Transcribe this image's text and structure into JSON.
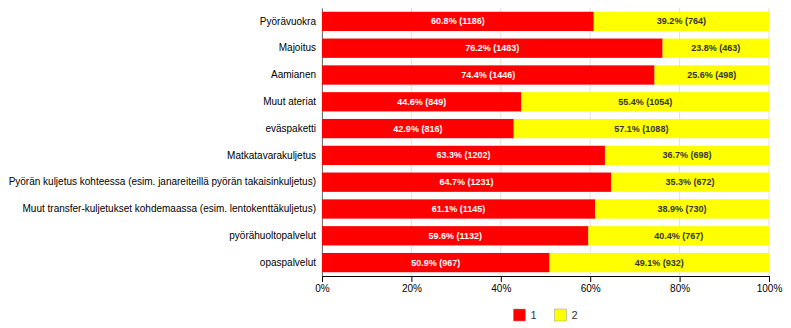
{
  "chart_data": {
    "type": "bar",
    "orientation": "horizontal",
    "stacked": true,
    "categories": [
      "opaspalvelut",
      "pyörähuoltopalvelut",
      "Muut transfer-kuljetukset kohdemaassa (esim. lentokenttäkuljetus)",
      "Pyörän kuljetus kohteessa (esim. janareiteillä pyörän takaisinkuljetus)",
      "Matkatavarakuljetus",
      "eväspaketti",
      "Muut ateriat",
      "Aamianen",
      "Majoitus",
      "Pyörävuokra"
    ],
    "series": [
      {
        "name": "1",
        "color": "#FF0000",
        "values": [
          50.9,
          59.6,
          61.1,
          64.7,
          63.3,
          42.9,
          44.6,
          74.4,
          76.2,
          60.8
        ],
        "value_labels": [
          "50.9% (967)",
          "59.6% (1132)",
          "61.1% (1145)",
          "64.7% (1231)",
          "63.3% (1202)",
          "42.9% (816)",
          "44.6% (849)",
          "74.4% (1446)",
          "76.2% (1483)",
          "60.8% (1186)"
        ]
      },
      {
        "name": "2",
        "color": "#FFFF00",
        "values": [
          49.1,
          40.4,
          38.9,
          35.3,
          36.7,
          57.1,
          55.4,
          25.6,
          23.8,
          39.2
        ],
        "value_labels": [
          "49.1% (932)",
          "40.4% (767)",
          "38.9% (730)",
          "35.3% (672)",
          "36.7% (698)",
          "57.1% (1088)",
          "55.4% (1054)",
          "25.6% (498)",
          "23.8% (463)",
          "39.2% (764)"
        ]
      }
    ],
    "data_labels": true,
    "xlim": [
      0,
      100
    ],
    "xticks": [
      {
        "value": 0,
        "label": "0%"
      },
      {
        "value": 20,
        "label": "20%"
      },
      {
        "value": 40,
        "label": "40%"
      },
      {
        "value": 60,
        "label": "60%"
      },
      {
        "value": 80,
        "label": "80%"
      },
      {
        "value": 100,
        "label": "100%"
      }
    ],
    "grid": true,
    "legend": "bottom"
  }
}
